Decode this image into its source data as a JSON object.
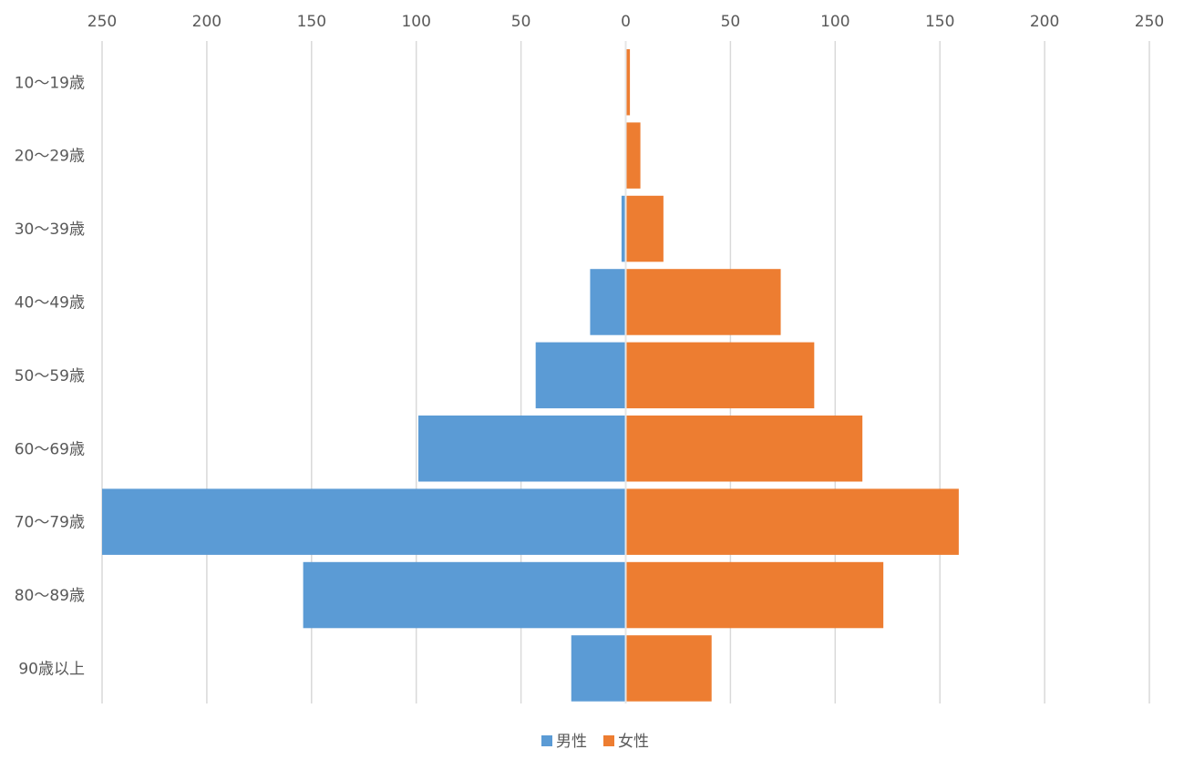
{
  "chart_data": {
    "type": "bar",
    "orientation": "horizontal",
    "subtype": "population-pyramid",
    "title": "",
    "xlabel": "",
    "ylabel": "",
    "categories": [
      "10〜19歳",
      "20〜29歳",
      "30〜39歳",
      "40〜49歳",
      "50〜59歳",
      "60〜69歳",
      "70〜79歳",
      "80〜89歳",
      "90歳以上"
    ],
    "x_axis": {
      "position": "top",
      "range": [
        -250,
        250
      ],
      "tick_values": [
        -250,
        -200,
        -150,
        -100,
        -50,
        0,
        50,
        100,
        150,
        200,
        250
      ],
      "tick_labels": [
        "250",
        "200",
        "150",
        "100",
        "50",
        "0",
        "50",
        "100",
        "150",
        "200",
        "250"
      ]
    },
    "grid": true,
    "legend_position": "bottom",
    "series": [
      {
        "name": "男性",
        "color": "#5b9bd5",
        "side": "left",
        "values": [
          0,
          0,
          2,
          17,
          43,
          99,
          250,
          154,
          26
        ]
      },
      {
        "name": "女性",
        "color": "#ed7d31",
        "side": "right",
        "values": [
          2,
          7,
          18,
          74,
          90,
          113,
          159,
          123,
          41
        ]
      }
    ]
  }
}
